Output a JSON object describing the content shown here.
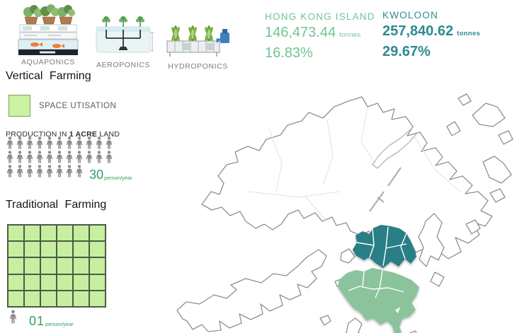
{
  "methods": [
    {
      "label": "AQUAPONICS"
    },
    {
      "label": "AEROPONICS"
    },
    {
      "label": "HYDROPONICS"
    }
  ],
  "stats": [
    {
      "region": "HONG KONG ISLAND",
      "tonnage": "146,473.44",
      "unit": "tonnes",
      "percent": "16.83%",
      "color": "#6ec692"
    },
    {
      "region": "KWOLOON",
      "tonnage": "257,840.62",
      "unit": "tonnes",
      "percent": "29.67%",
      "color": "#2d8a91"
    }
  ],
  "vertical_farming": {
    "title": "Vertical Farming",
    "legend_label": "SPACE UTISATION",
    "production_prefix": "PRODUCTION IN",
    "production_bold": "1 ACRE",
    "production_suffix": "LAND",
    "person_rows": [
      11,
      11,
      8
    ],
    "value": "30",
    "value_unit": "person/year"
  },
  "traditional_farming": {
    "title": "Traditional Farming",
    "grid": {
      "rows": 5,
      "cols": 6
    },
    "value": "01",
    "value_unit": "person/year"
  },
  "map": {
    "highlight_kowloon": "#2b7e86",
    "highlight_hk_island": "#8bc39d",
    "land_fill": "#ffffff",
    "coast_stroke": "#8f8f8f"
  },
  "colors": {
    "light_green_text": "#6ec692",
    "teal_text": "#2d8a91",
    "value_green": "#2fa05c",
    "legend_fill": "#c9f2a1",
    "grid_fill": "#c7ef9f",
    "person_gray": "#8c8c8c"
  },
  "chart_data": {
    "type": "table",
    "title": "Vertical farming production by region",
    "categories": [
      "HONG KONG ISLAND",
      "KWOLOON"
    ],
    "series": [
      {
        "name": "production_tonnes",
        "values": [
          146473.44,
          257840.62
        ]
      },
      {
        "name": "percent_share",
        "values": [
          16.83,
          29.67
        ]
      }
    ],
    "annotations": [
      "Vertical farming: 30 person/year per 1 acre",
      "Traditional farming: 01 person/year per 1 acre"
    ]
  }
}
